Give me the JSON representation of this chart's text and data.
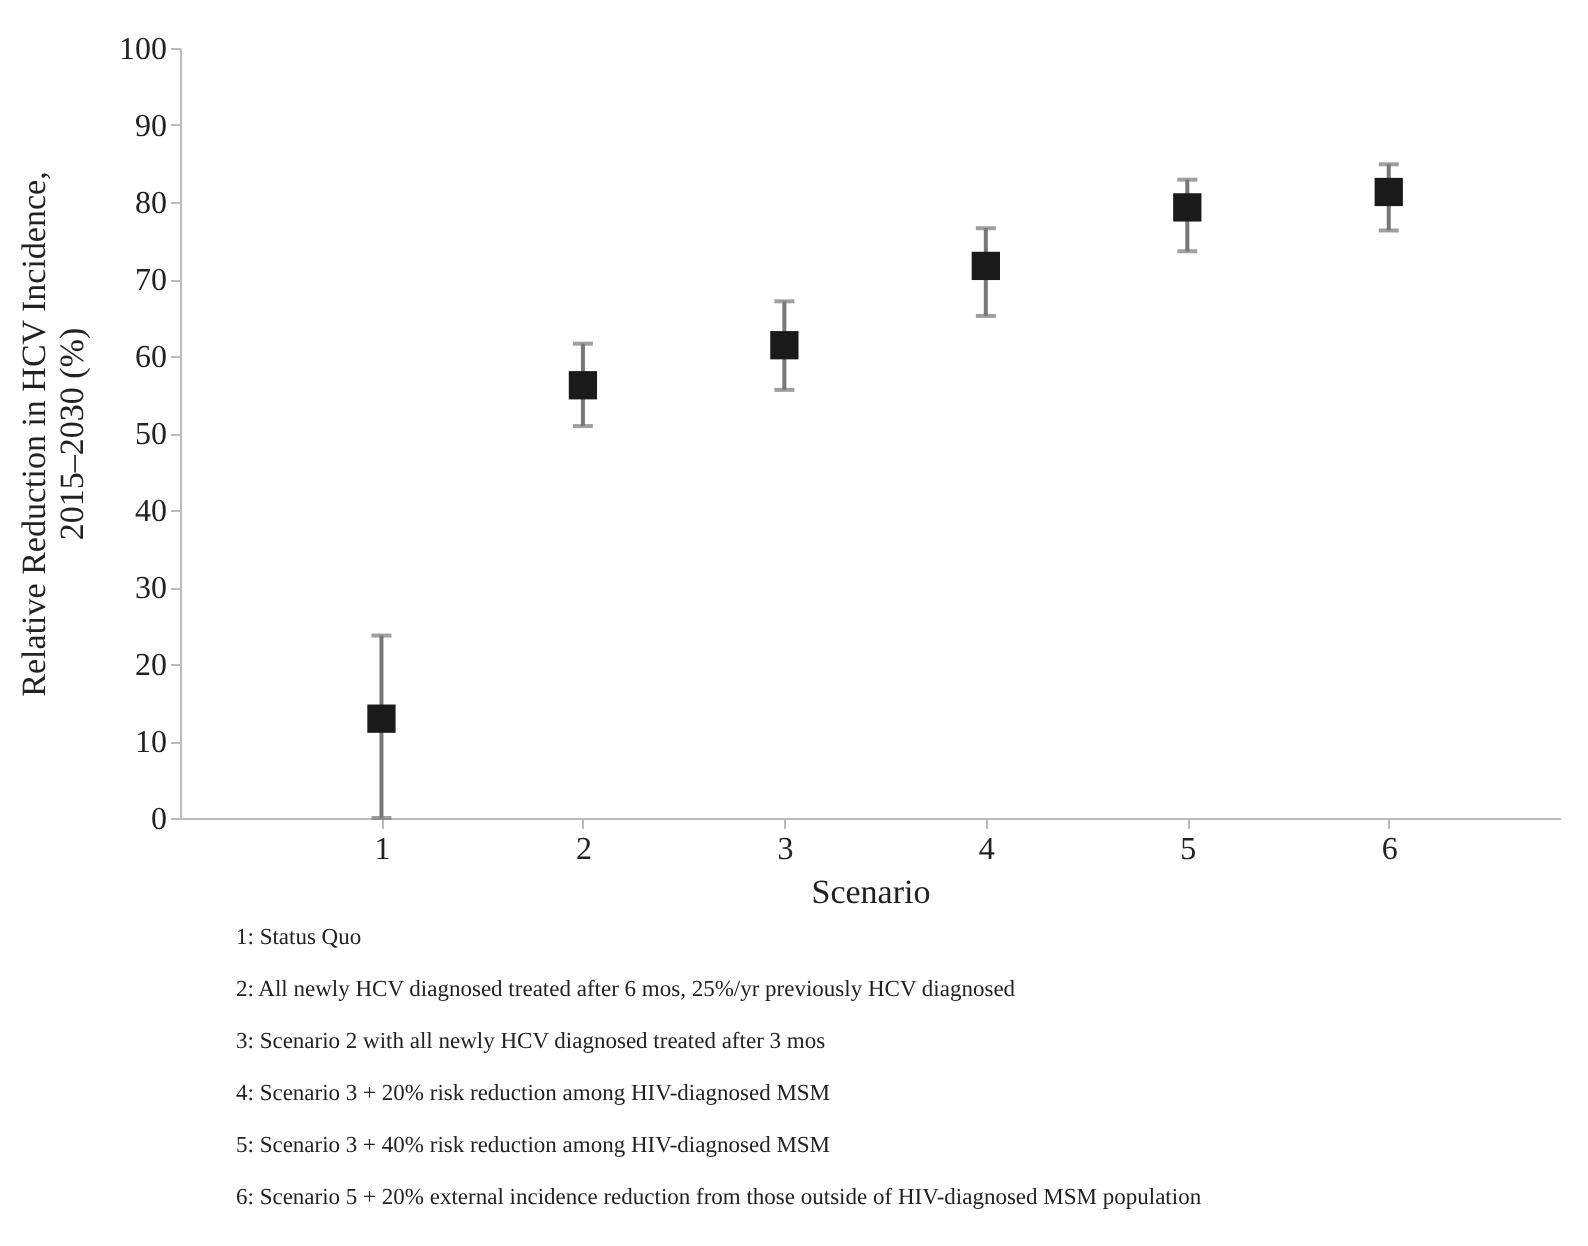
{
  "chart_data": {
    "type": "scatter",
    "xlabel": "Scenario",
    "ylabel": "Relative Reduction in HCV Incidence,\n2015–2030 (%)",
    "x": [
      1,
      2,
      3,
      4,
      5,
      6
    ],
    "series": [
      {
        "color": "#1a1a1a",
        "values": [
          12.9,
          56.2,
          61.4,
          71.7,
          79.3,
          81.3
        ],
        "errors": [
          [
            0,
            23.7
          ],
          [
            50.9,
            61.6
          ],
          [
            55.6,
            67.1
          ],
          [
            65.2,
            76.6
          ],
          [
            73.6,
            82.9
          ],
          [
            76.3,
            84.9
          ]
        ]
      }
    ],
    "xlim": [
      0,
      6.85
    ],
    "xticks": [
      1,
      2,
      3,
      4,
      5,
      6
    ],
    "ylim": [
      0,
      100
    ],
    "yticks": [
      0,
      10,
      20,
      30,
      40,
      50,
      60,
      70,
      80,
      90,
      100
    ],
    "marker": "square",
    "grid": false,
    "annotations": [
      "1: Status Quo",
      "2: All newly HCV diagnosed treated after 6 mos, 25%/yr previously HCV diagnosed",
      "3: Scenario 2 with all newly HCV diagnosed treated after 3 mos",
      "4: Scenario 3 + 20% risk reduction among HIV-diagnosed MSM",
      "5: Scenario 3 + 40% risk reduction among HIV-diagnosed MSM",
      "6: Scenario 5 + 20% external incidence reduction from those outside of HIV-diagnosed MSM population"
    ]
  }
}
